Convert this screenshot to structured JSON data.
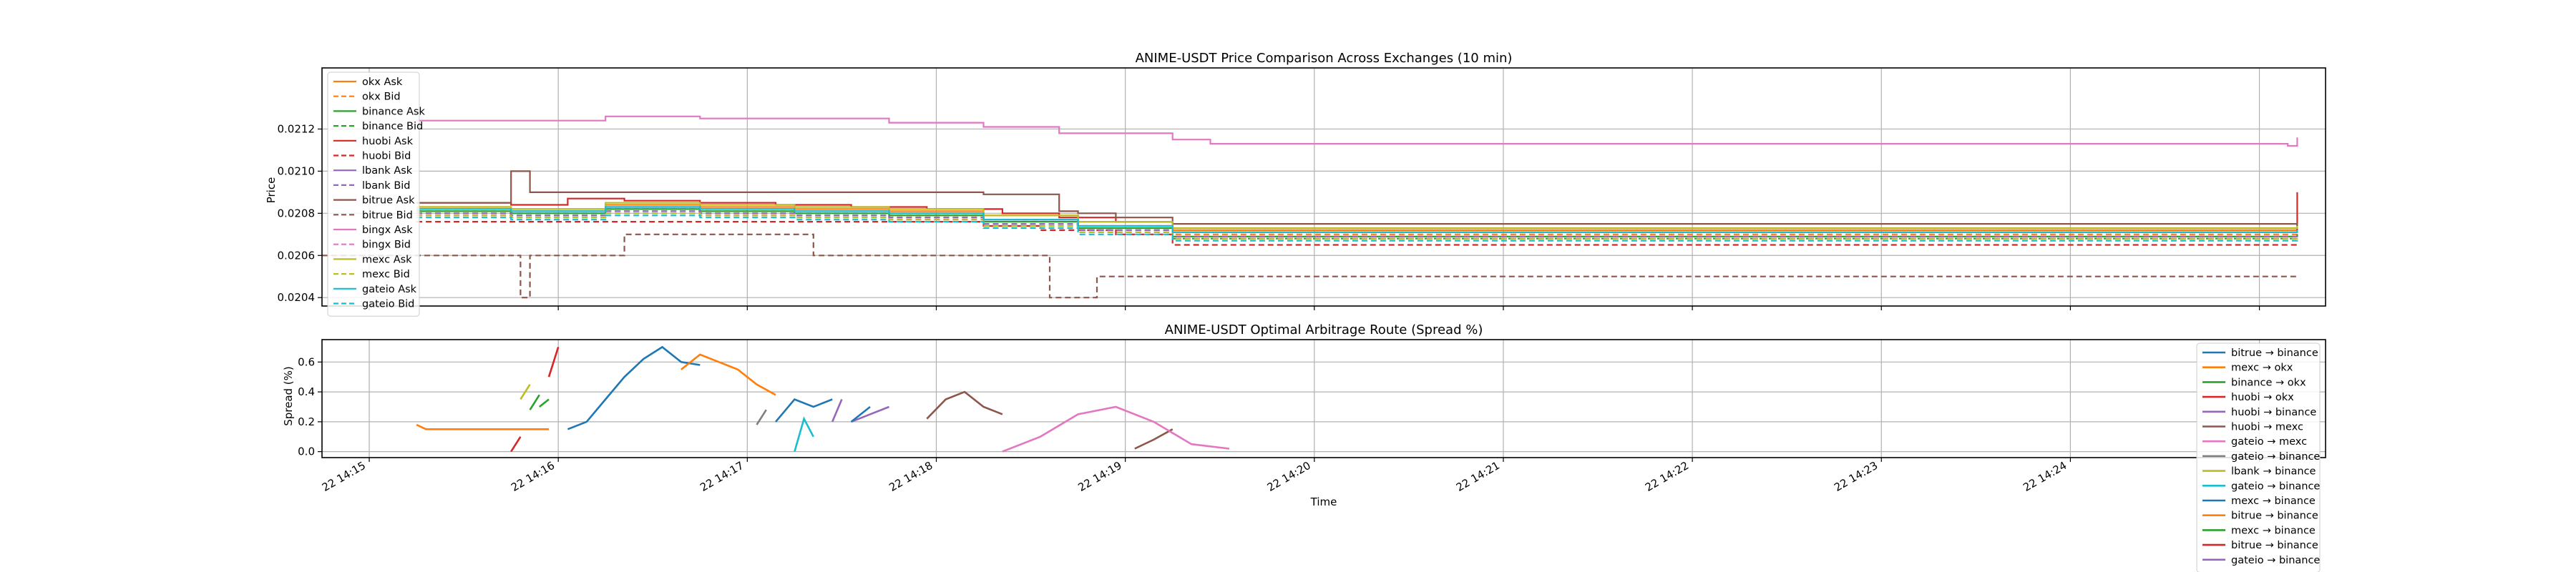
{
  "chart_data": [
    {
      "type": "line",
      "title": "ANIME-USDT Price Comparison Across Exchanges (10 min)",
      "xlabel": "",
      "ylabel": "Price",
      "ylim": [
        0.02036,
        0.02149
      ],
      "yticks": [
        "0.0204",
        "0.0206",
        "0.0208",
        "0.0210",
        "0.0212"
      ],
      "yticks_values": [
        0.0204,
        0.0206,
        0.0208,
        0.021,
        0.0212
      ],
      "xlim": [
        "14:14.0",
        "14:24.6"
      ],
      "xticks_values": [
        14.25,
        15.25,
        16.25,
        17.25,
        18.25,
        19.25,
        20.25,
        21.25,
        22.25,
        23.25,
        24.25
      ],
      "grid": true,
      "legend": "upper-left",
      "series": [
        {
          "name": "okx Ask",
          "color": "#ff7f0e",
          "dash": false,
          "x": [
            14.5,
            15.0,
            15.5,
            16.0,
            16.5,
            17.0,
            17.5,
            18.0,
            18.5,
            19.0,
            24.2,
            24.45
          ],
          "y": [
            0.02083,
            0.02082,
            0.02084,
            0.02083,
            0.02082,
            0.02081,
            0.02079,
            0.02076,
            0.02072,
            0.02072,
            0.02072,
            0.02073
          ]
        },
        {
          "name": "okx Bid",
          "color": "#ff7f0e",
          "dash": true,
          "x": [
            14.5,
            15.0,
            15.5,
            16.0,
            16.5,
            17.0,
            17.5,
            18.0,
            18.5,
            19.0,
            24.2,
            24.45
          ],
          "y": [
            0.02081,
            0.0208,
            0.02082,
            0.02081,
            0.0208,
            0.02079,
            0.02077,
            0.02074,
            0.0207,
            0.0207,
            0.0207,
            0.02071
          ]
        },
        {
          "name": "binance Ask",
          "color": "#2ca02c",
          "dash": false,
          "x": [
            14.5,
            15.0,
            15.5,
            16.0,
            16.5,
            17.0,
            17.5,
            18.0,
            18.5,
            19.0,
            24.2,
            24.45
          ],
          "y": [
            0.02081,
            0.0208,
            0.02082,
            0.02081,
            0.0208,
            0.02079,
            0.02076,
            0.02073,
            0.02069,
            0.02069,
            0.02069,
            0.0207
          ]
        },
        {
          "name": "binance Bid",
          "color": "#2ca02c",
          "dash": true,
          "x": [
            14.5,
            15.0,
            15.5,
            16.0,
            16.5,
            17.0,
            17.5,
            18.0,
            18.5,
            19.0,
            24.2,
            24.45
          ],
          "y": [
            0.0208,
            0.02079,
            0.02081,
            0.0208,
            0.02079,
            0.02078,
            0.02075,
            0.02072,
            0.02068,
            0.02068,
            0.02068,
            0.02069
          ]
        },
        {
          "name": "huobi Ask",
          "color": "#d62728",
          "dash": false,
          "x": [
            14.5,
            15.0,
            15.3,
            15.6,
            16.0,
            16.4,
            16.8,
            17.2,
            17.6,
            17.9,
            18.2,
            18.5,
            24.4,
            24.45
          ],
          "y": [
            0.02085,
            0.02084,
            0.02087,
            0.02086,
            0.02085,
            0.02084,
            0.02083,
            0.02082,
            0.0208,
            0.02078,
            0.02076,
            0.02071,
            0.02071,
            0.0209
          ]
        },
        {
          "name": "huobi Bid",
          "color": "#d62728",
          "dash": true,
          "x": [
            14.5,
            15.0,
            15.5,
            16.0,
            16.5,
            17.0,
            17.5,
            17.8,
            18.2,
            18.5,
            19.0,
            24.2,
            24.45
          ],
          "y": [
            0.02076,
            0.02076,
            0.02076,
            0.02076,
            0.02076,
            0.02076,
            0.02074,
            0.02072,
            0.0207,
            0.02065,
            0.02065,
            0.02065,
            0.02066
          ]
        },
        {
          "name": "lbank Ask",
          "color": "#9467bd",
          "dash": false,
          "x": [
            14.5,
            15.0,
            15.5,
            16.0,
            16.5,
            17.0,
            17.5,
            18.0,
            18.5,
            19.0,
            24.2,
            24.45
          ],
          "y": [
            0.02082,
            0.02081,
            0.02083,
            0.02082,
            0.02081,
            0.0208,
            0.02077,
            0.02074,
            0.02071,
            0.02071,
            0.02071,
            0.02072
          ]
        },
        {
          "name": "lbank Bid",
          "color": "#9467bd",
          "dash": true,
          "x": [
            14.5,
            15.0,
            15.5,
            16.0,
            16.5,
            17.0,
            17.5,
            18.0,
            18.5,
            19.0,
            24.2,
            24.45
          ],
          "y": [
            0.0208,
            0.02079,
            0.02081,
            0.0208,
            0.02079,
            0.02078,
            0.02075,
            0.02072,
            0.02069,
            0.02069,
            0.02069,
            0.0207
          ]
        },
        {
          "name": "bitrue Ask",
          "color": "#8c564b",
          "dash": false,
          "x": [
            14.5,
            15.0,
            15.1,
            16.0,
            17.0,
            17.5,
            17.9,
            18.0,
            18.2,
            18.5,
            19.0,
            24.4,
            24.45
          ],
          "y": [
            0.02085,
            0.021,
            0.0209,
            0.0209,
            0.0209,
            0.02089,
            0.02081,
            0.0208,
            0.02078,
            0.02075,
            0.02075,
            0.02075,
            0.02074
          ]
        },
        {
          "name": "bitrue Bid",
          "color": "#8c564b",
          "dash": true,
          "x": [
            14.0,
            15.0,
            15.05,
            15.1,
            15.5,
            15.6,
            16.5,
            16.6,
            17.0,
            17.5,
            17.8,
            17.85,
            18.0,
            18.1,
            18.12,
            24.45
          ],
          "y": [
            0.0206,
            0.0206,
            0.0204,
            0.0206,
            0.0206,
            0.0207,
            0.0207,
            0.0206,
            0.0206,
            0.0206,
            0.0206,
            0.0204,
            0.0204,
            0.0205,
            0.0205,
            0.0205
          ]
        },
        {
          "name": "bingx Ask",
          "color": "#e377c2",
          "dash": false,
          "x": [
            14.5,
            15.0,
            15.5,
            16.0,
            16.5,
            17.0,
            17.5,
            17.9,
            18.1,
            18.5,
            18.7,
            24.3,
            24.4,
            24.45
          ],
          "y": [
            0.02124,
            0.02124,
            0.02126,
            0.02125,
            0.02125,
            0.02123,
            0.02121,
            0.02118,
            0.02118,
            0.02115,
            0.02113,
            0.02113,
            0.02112,
            0.02116
          ]
        },
        {
          "name": "bingx Bid",
          "color": "#e377c2",
          "dash": true,
          "x": [
            14.5,
            15.0,
            15.5,
            16.0,
            16.5,
            17.0,
            17.5,
            18.0,
            18.5,
            19.0,
            24.2,
            24.45
          ],
          "y": [
            0.02079,
            0.02078,
            0.0208,
            0.02079,
            0.02078,
            0.02077,
            0.02074,
            0.02071,
            0.02068,
            0.02068,
            0.02068,
            0.02069
          ]
        },
        {
          "name": "mexc Ask",
          "color": "#bcbd22",
          "dash": false,
          "x": [
            14.5,
            15.0,
            15.5,
            16.0,
            16.5,
            17.0,
            17.5,
            18.0,
            18.5,
            19.0,
            24.2,
            24.45
          ],
          "y": [
            0.02083,
            0.02082,
            0.02085,
            0.02084,
            0.02083,
            0.02082,
            0.02079,
            0.02076,
            0.02073,
            0.02073,
            0.02073,
            0.02074
          ]
        },
        {
          "name": "mexc Bid",
          "color": "#bcbd22",
          "dash": true,
          "x": [
            14.5,
            15.0,
            15.5,
            16.0,
            16.5,
            17.0,
            17.5,
            18.0,
            18.5,
            19.0,
            24.2,
            24.45
          ],
          "y": [
            0.02079,
            0.02078,
            0.0208,
            0.02079,
            0.02078,
            0.02077,
            0.02074,
            0.02071,
            0.02068,
            0.02068,
            0.02068,
            0.02069
          ]
        },
        {
          "name": "gateio Ask",
          "color": "#17becf",
          "dash": false,
          "x": [
            14.5,
            15.0,
            15.5,
            16.0,
            16.5,
            17.0,
            17.5,
            18.0,
            18.5,
            19.0,
            24.2,
            24.45
          ],
          "y": [
            0.02082,
            0.02081,
            0.02083,
            0.02082,
            0.02081,
            0.0208,
            0.02077,
            0.02074,
            0.02071,
            0.02071,
            0.02071,
            0.02072
          ]
        },
        {
          "name": "gateio Bid",
          "color": "#17becf",
          "dash": true,
          "x": [
            14.5,
            15.0,
            15.5,
            16.0,
            16.5,
            17.0,
            17.5,
            18.0,
            18.5,
            19.0,
            24.2,
            24.45
          ],
          "y": [
            0.02078,
            0.02077,
            0.02079,
            0.02078,
            0.02077,
            0.02076,
            0.02073,
            0.0207,
            0.02067,
            0.02067,
            0.02067,
            0.02068
          ]
        }
      ]
    },
    {
      "type": "line",
      "title": "ANIME-USDT Optimal Arbitrage Route (Spread %)",
      "xlabel": "Time",
      "ylabel": "Spread (%)",
      "ylim": [
        -0.04,
        0.75
      ],
      "yticks": [
        "0.0",
        "0.2",
        "0.4",
        "0.6"
      ],
      "yticks_values": [
        0.0,
        0.2,
        0.4,
        0.6
      ],
      "xlim": [
        "14:14.0",
        "14:24.6"
      ],
      "xticks": [
        "22 14:15",
        "22 14:16",
        "22 14:17",
        "22 14:18",
        "22 14:19",
        "22 14:20",
        "22 14:21",
        "22 14:22",
        "22 14:23",
        "22 14:24"
      ],
      "xticks_values": [
        14.25,
        15.25,
        16.25,
        17.25,
        18.25,
        19.25,
        20.25,
        21.25,
        22.25,
        23.25,
        24.25
      ],
      "grid": true,
      "legend": "right",
      "series": [
        {
          "name": "bitrue → binance",
          "color": "#1f77b4",
          "segments": [
            [
              [
                15.3,
                0.15
              ],
              [
                15.4,
                0.2
              ],
              [
                15.5,
                0.35
              ],
              [
                15.6,
                0.5
              ],
              [
                15.7,
                0.62
              ],
              [
                15.8,
                0.7
              ],
              [
                15.9,
                0.6
              ],
              [
                16.0,
                0.58
              ]
            ],
            [
              [
                16.4,
                0.2
              ],
              [
                16.5,
                0.35
              ],
              [
                16.6,
                0.3
              ],
              [
                16.7,
                0.35
              ]
            ]
          ]
        },
        {
          "name": "mexc → okx",
          "color": "#ff7f0e",
          "segments": [
            [
              [
                15.9,
                0.55
              ],
              [
                16.0,
                0.65
              ],
              [
                16.1,
                0.6
              ],
              [
                16.2,
                0.55
              ],
              [
                16.3,
                0.45
              ],
              [
                16.4,
                0.38
              ]
            ]
          ]
        },
        {
          "name": "binance → okx",
          "color": "#2ca02c",
          "segments": [
            [
              [
                15.1,
                0.28
              ],
              [
                15.15,
                0.38
              ]
            ]
          ]
        },
        {
          "name": "huobi → okx",
          "color": "#d62728",
          "segments": [
            [
              [
                15.2,
                0.5
              ],
              [
                15.25,
                0.7
              ]
            ]
          ]
        },
        {
          "name": "huobi → binance",
          "color": "#9467bd",
          "segments": [
            [
              [
                16.8,
                0.2
              ],
              [
                16.9,
                0.25
              ],
              [
                17.0,
                0.3
              ]
            ]
          ]
        },
        {
          "name": "huobi → mexc",
          "color": "#8c564b",
          "segments": [
            [
              [
                17.2,
                0.22
              ],
              [
                17.3,
                0.35
              ],
              [
                17.4,
                0.4
              ],
              [
                17.5,
                0.3
              ],
              [
                17.6,
                0.25
              ]
            ],
            [
              [
                18.3,
                0.02
              ],
              [
                18.4,
                0.08
              ],
              [
                18.5,
                0.15
              ]
            ]
          ]
        },
        {
          "name": "gateio → mexc",
          "color": "#e377c2",
          "segments": [
            [
              [
                17.6,
                0.0
              ],
              [
                17.8,
                0.1
              ],
              [
                18.0,
                0.25
              ],
              [
                18.2,
                0.3
              ],
              [
                18.4,
                0.2
              ],
              [
                18.6,
                0.05
              ],
              [
                18.8,
                0.02
              ]
            ]
          ]
        },
        {
          "name": "gateio → binance",
          "color": "#7f7f7f",
          "segments": [
            [
              [
                16.3,
                0.18
              ],
              [
                16.35,
                0.28
              ]
            ]
          ]
        },
        {
          "name": "lbank → binance",
          "color": "#bcbd22",
          "segments": [
            [
              [
                15.05,
                0.35
              ],
              [
                15.1,
                0.45
              ]
            ]
          ]
        },
        {
          "name": "gateio → binance",
          "color": "#17becf",
          "segments": [
            [
              [
                16.5,
                0.0
              ],
              [
                16.55,
                0.22
              ],
              [
                16.6,
                0.1
              ]
            ]
          ]
        },
        {
          "name": "mexc → binance",
          "color": "#1f77b4",
          "segments": [
            [
              [
                16.8,
                0.2
              ],
              [
                16.9,
                0.3
              ]
            ]
          ]
        },
        {
          "name": "bitrue → binance",
          "color": "#ff7f0e",
          "segments": [
            [
              [
                14.5,
                0.18
              ],
              [
                14.55,
                0.15
              ],
              [
                15.2,
                0.15
              ]
            ]
          ]
        },
        {
          "name": "mexc → binance",
          "color": "#2ca02c",
          "segments": [
            [
              [
                15.15,
                0.3
              ],
              [
                15.2,
                0.35
              ]
            ]
          ]
        },
        {
          "name": "bitrue → binance",
          "color": "#d62728",
          "segments": [
            [
              [
                15.0,
                0.0
              ],
              [
                15.05,
                0.1
              ]
            ]
          ]
        },
        {
          "name": "gateio → binance",
          "color": "#9467bd",
          "segments": [
            [
              [
                16.7,
                0.2
              ],
              [
                16.75,
                0.35
              ]
            ]
          ]
        }
      ]
    }
  ]
}
